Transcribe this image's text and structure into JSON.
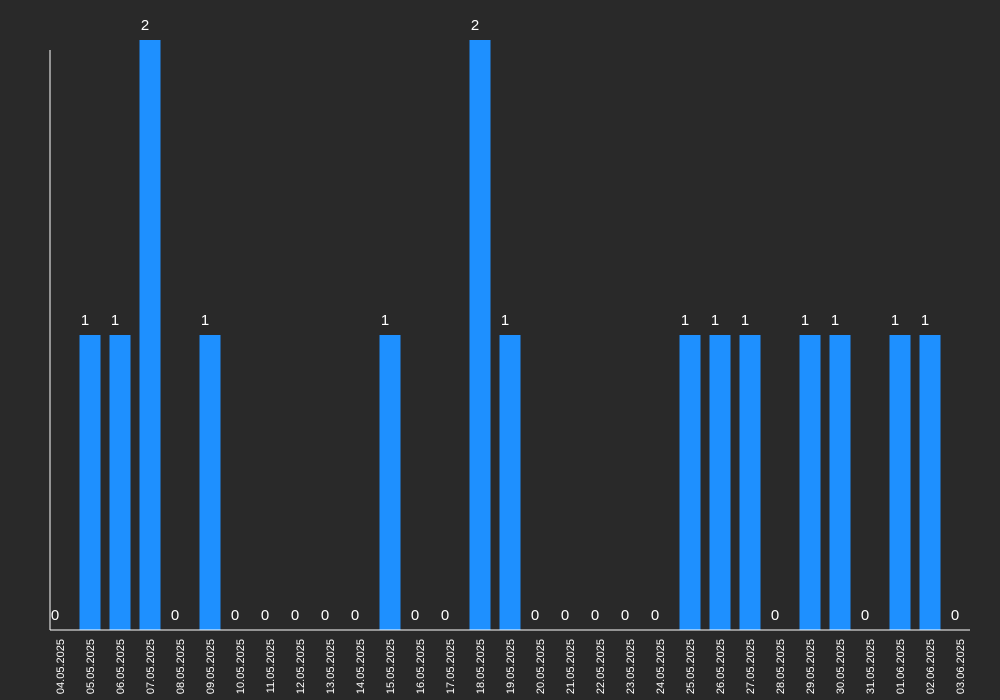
{
  "chart_data": {
    "type": "bar",
    "title": "",
    "xlabel": "",
    "ylabel": "",
    "ylim": [
      0,
      2
    ],
    "grid": false,
    "legend": "none",
    "bar_color": "#1e90ff",
    "axis_color": "#ffffff",
    "background": "#292929",
    "categories": [
      "04.05.2025",
      "05.05.2025",
      "06.05.2025",
      "07.05.2025",
      "08.05.2025",
      "09.05.2025",
      "10.05.2025",
      "11.05.2025",
      "12.05.2025",
      "13.05.2025",
      "14.05.2025",
      "15.05.2025",
      "16.05.2025",
      "17.05.2025",
      "18.05.2025",
      "19.05.2025",
      "20.05.2025",
      "21.05.2025",
      "22.05.2025",
      "23.05.2025",
      "24.05.2025",
      "25.05.2025",
      "26.05.2025",
      "27.05.2025",
      "28.05.2025",
      "29.05.2025",
      "30.05.2025",
      "31.05.2025",
      "01.06.2025",
      "02.06.2025",
      "03.06.2025"
    ],
    "values": [
      0,
      1,
      1,
      2,
      0,
      1,
      0,
      0,
      0,
      0,
      0,
      1,
      0,
      0,
      2,
      1,
      0,
      0,
      0,
      0,
      0,
      1,
      1,
      1,
      0,
      1,
      1,
      0,
      1,
      1,
      0
    ]
  }
}
